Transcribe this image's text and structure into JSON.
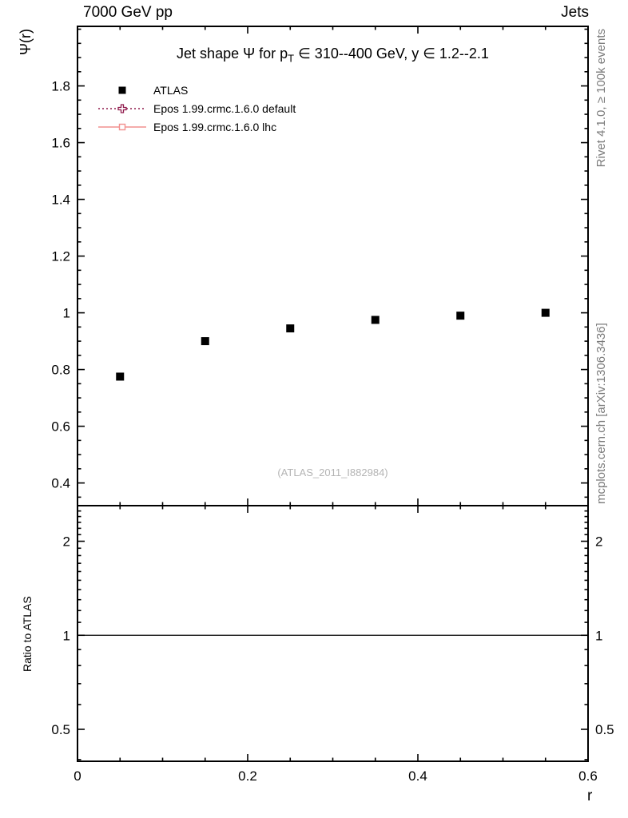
{
  "header": {
    "left": "7000 GeV pp",
    "right": "Jets"
  },
  "labels": {
    "y_axis_title": "Ψ(r)",
    "x_axis_title": "r",
    "ratio_axis_title": "Ratio to ATLAS",
    "rivet_note": "Rivet 4.1.0, ≥ 100k events",
    "mcplots_note": "mcplots.cern.ch [arXiv:1306.3436]",
    "watermark": "(ATLAS_2011_I882984)"
  },
  "title": {
    "pre": "Jet shape Ψ for p",
    "sub": "T",
    "post": " ∈ 310--400 GeV, y ∈ 1.2--2.1"
  },
  "legend": [
    {
      "label": "ATLAS",
      "marker": "filled-square",
      "line": "none",
      "color": "#000000"
    },
    {
      "label": "Epos 1.99.crmc.1.6.0 default",
      "marker": "open-cross",
      "line": "dotted",
      "color": "#8f1a4c"
    },
    {
      "label": "Epos 1.99.crmc.1.6.0 lhc",
      "marker": "open-square",
      "line": "solid",
      "color": "#f2908f"
    }
  ],
  "chart_data": {
    "type": "scatter",
    "title": "Jet shape Ψ for p_T ∈ 310--400 GeV, y ∈ 1.2--2.1",
    "xlabel": "r",
    "ylabel": "Ψ(r)",
    "xlim": [
      0,
      0.6
    ],
    "ylim": [
      0.32,
      2.01
    ],
    "xticks_major": [
      0,
      0.2,
      0.4,
      0.6
    ],
    "xtick_minor_step": 0.05,
    "yticks_major": [
      0.4,
      0.6,
      0.8,
      1.0,
      1.2,
      1.4,
      1.6,
      1.8
    ],
    "ytick_minor_step": 0.05,
    "grid": false,
    "legend_position": "top-left",
    "series": [
      {
        "name": "ATLAS",
        "type": "scatter",
        "marker": "filled-square",
        "color": "#000000",
        "x": [
          0.05,
          0.15,
          0.25,
          0.35,
          0.45,
          0.55
        ],
        "y": [
          0.775,
          0.9,
          0.945,
          0.975,
          0.99,
          1.0
        ]
      }
    ],
    "ratio_panel": {
      "ylabel": "Ratio to ATLAS",
      "yscale": "log",
      "ylim": [
        0.395,
        2.6
      ],
      "yticks_labeled": [
        0.5,
        1,
        2
      ],
      "reference_line_y": 1
    }
  }
}
